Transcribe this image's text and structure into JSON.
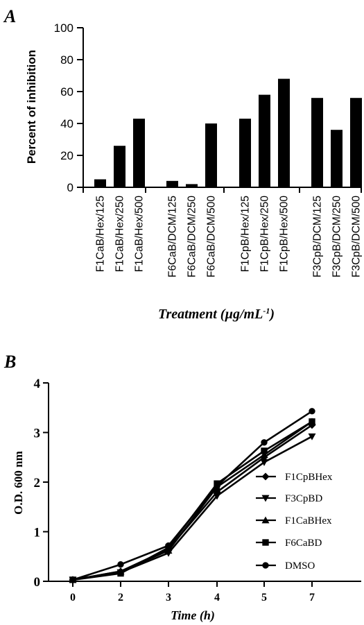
{
  "chart_data": [
    {
      "panel": "A",
      "type": "bar",
      "xlabel": "Treatment (µg/mL",
      "xlabel_sup": "-1",
      "xlabel_end": ")",
      "ylabel": "Percent of inhibition",
      "ylim": [
        0,
        100
      ],
      "yticks": [
        "0",
        "20",
        "40",
        "60",
        "80",
        "100"
      ],
      "grid": false,
      "color": "#000000",
      "groups": [
        {
          "categories": [
            "F1CaB/Hex/125",
            "F1CaB/Hex/250",
            "F1CaB/Hex/500"
          ],
          "values": [
            5,
            26,
            43
          ]
        },
        {
          "categories": [
            "F6CaB/DCM/125",
            "F6CaB/DCM/250",
            "F6CaB/DCM/500"
          ],
          "values": [
            4,
            2,
            40
          ]
        },
        {
          "categories": [
            "F1CpB/Hex/125",
            "F1CpB/Hex/250",
            "F1CpB/Hex/500"
          ],
          "values": [
            43,
            58,
            68
          ]
        },
        {
          "categories": [
            "F3CpB/DCM/125",
            "F3CpB/DCM/250",
            "F3CpB/DCM/500"
          ],
          "values": [
            56,
            36,
            56
          ]
        }
      ]
    },
    {
      "panel": "B",
      "type": "line",
      "xlabel": "Time (h)",
      "ylabel": "O.D. 600 nm",
      "xticks": [
        "0",
        "2",
        "3",
        "4",
        "5",
        "7"
      ],
      "yticks": [
        "0",
        "1",
        "2",
        "3",
        "4"
      ],
      "ylim": [
        0,
        4
      ],
      "grid": false,
      "legend": "bottom-right",
      "series": [
        {
          "name": "F1CpBHex",
          "marker": "diamond",
          "values": [
            0.03,
            0.2,
            0.65,
            1.8,
            2.5,
            3.15
          ]
        },
        {
          "name": "F3CpBD",
          "marker": "triangle-down",
          "values": [
            0.03,
            0.18,
            0.57,
            1.72,
            2.4,
            2.92
          ]
        },
        {
          "name": "F1CaBHex",
          "marker": "triangle-up",
          "values": [
            0.03,
            0.2,
            0.62,
            1.9,
            2.55,
            3.22
          ]
        },
        {
          "name": "F6CaBD",
          "marker": "square",
          "values": [
            0.03,
            0.16,
            0.68,
            1.97,
            2.63,
            3.22
          ]
        },
        {
          "name": "DMSO",
          "marker": "circle",
          "values": [
            0.03,
            0.34,
            0.72,
            1.92,
            2.8,
            3.43
          ]
        }
      ]
    }
  ]
}
